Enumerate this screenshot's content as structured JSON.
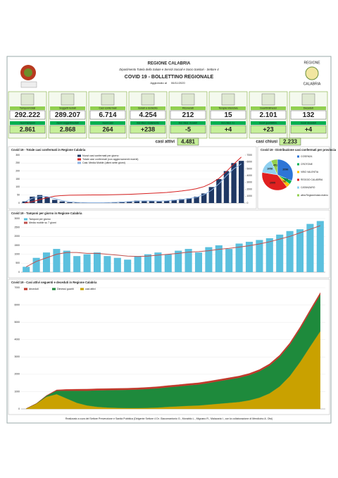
{
  "header": {
    "region": "REGIONE CALABRIA",
    "department": "Dipartimento Tutela della Salute e Servizi Sociali e Socio Sanitari - Settore 4",
    "title": "COVID 19 - BOLLETTINO REGIONALE",
    "updated_label": "Aggiornato al",
    "updated_date": "06/11/2020",
    "logo_top": "REGIONE",
    "logo_bottom": "CALABRIA"
  },
  "stats": [
    {
      "label": "Tamponi totali",
      "value": "292.222",
      "sub_label": "nuovi tamponi",
      "sub_value": "2.861"
    },
    {
      "label": "Soggetti testati",
      "value": "289.207",
      "sub_label": "nuovi soggetti testati",
      "sub_value": "2.868"
    },
    {
      "label": "Casi confermati",
      "value": "6.714",
      "sub_label": "nuovi casi",
      "sub_value": "264"
    },
    {
      "label": "Isolati a domicilio",
      "value": "4.254",
      "sub_label": "incr./decr. isolamento",
      "sub_value": "+238"
    },
    {
      "label": "Ricoverati",
      "value": "212",
      "sub_label": "incr./decr. ricoveri",
      "sub_value": "-5"
    },
    {
      "label": "Terapia intensiva",
      "value": "15",
      "sub_label": "incr./decr. t.i.",
      "sub_value": "+4"
    },
    {
      "label": "Guariti/dimessi",
      "value": "2.101",
      "sub_label": "nuovi guariti/dim.",
      "sub_value": "+23"
    },
    {
      "label": "Deceduti",
      "value": "132",
      "sub_label": "nuovi deceduti",
      "sub_value": "+4"
    }
  ],
  "active_label": "casi attivi",
  "active_value": "4.481",
  "closed_label": "casi chiusi",
  "closed_value": "2.233",
  "footer": "Realizzato a cura del Settore Prevenzione e Sanità Pubblica (Dirigente Settore 4 Dr. Giacomantonio G., Morabito L., Mignano R., Malacaria I., con la collaborazione di Mendicino A. Olsi)",
  "chart_data": [
    {
      "type": "bar",
      "title": "Covid 19 - Totale casi confermati in Regione Calabria",
      "grid": true,
      "ylim": [
        0,
        300
      ],
      "yticks": [
        0,
        50,
        100,
        150,
        200,
        250,
        300
      ],
      "y2lim": [
        0,
        7000
      ],
      "y2ticks": [
        0,
        1000,
        2000,
        3000,
        4000,
        5000,
        6000,
        7000
      ],
      "series": [
        {
          "name": "Nuovi casi confermati per giorno",
          "color": "#1f3864",
          "kind": "bar",
          "values": [
            10,
            40,
            50,
            40,
            20,
            10,
            5,
            3,
            2,
            2,
            2,
            3,
            5,
            8,
            10,
            15,
            15,
            12,
            10,
            15,
            20,
            25,
            30,
            40,
            60,
            100,
            150,
            200,
            250,
            264
          ]
        },
        {
          "name": "Totale casi confermati (con aggiornamenti recenti)",
          "color": "#d62020",
          "kind": "line",
          "axis": "y2",
          "values": [
            10,
            200,
            500,
            800,
            1000,
            1100,
            1150,
            1160,
            1170,
            1180,
            1190,
            1200,
            1220,
            1250,
            1280,
            1320,
            1380,
            1430,
            1480,
            1550,
            1650,
            1760,
            1900,
            2100,
            2400,
            2900,
            3600,
            4600,
            5700,
            6714
          ]
        },
        {
          "name": "Casi: Media Mobile (ultimi sette giorni)",
          "color": "#8db3e2",
          "kind": "line",
          "values": [
            8,
            30,
            42,
            40,
            28,
            15,
            8,
            4,
            3,
            2,
            2,
            3,
            4,
            6,
            9,
            12,
            14,
            13,
            12,
            14,
            18,
            22,
            28,
            36,
            52,
            80,
            120,
            170,
            215,
            245
          ]
        }
      ]
    },
    {
      "type": "pie",
      "title": "Covid 19 - Distribuzione casi confermati per provincia",
      "categories": [
        "COSENZA",
        "CROTONE",
        "VIBO VALENTIA",
        "REGGIO CALABRIA",
        "CATANZARO",
        "altra Regione/stato estero"
      ],
      "values": [
        2096,
        273,
        281,
        2555,
        1058,
        451
      ],
      "colors": [
        "#2e75d6",
        "#00b050",
        "#ffc000",
        "#e02020",
        "#8fd0f0",
        "#92d050"
      ]
    },
    {
      "type": "bar",
      "title": "Covid 19 - Tamponi per giorno in Regione Calabria",
      "grid": true,
      "ylim": [
        0,
        3000
      ],
      "yticks": [
        0,
        500,
        1000,
        1500,
        2000,
        2500,
        3000
      ],
      "series": [
        {
          "name": "Tamponi per giorno",
          "color": "#5bc0de",
          "kind": "bar",
          "values": [
            300,
            800,
            1100,
            1300,
            1200,
            900,
            1000,
            1100,
            900,
            800,
            700,
            900,
            1000,
            1100,
            1000,
            1200,
            1300,
            1100,
            1400,
            1500,
            1300,
            1600,
            1700,
            1800,
            1900,
            2100,
            2300,
            2400,
            2700,
            2861
          ]
        },
        {
          "name": "Media mobile su 7 giorni",
          "color": "#c0504d",
          "kind": "line",
          "values": [
            300,
            600,
            800,
            1000,
            1100,
            1100,
            1050,
            1050,
            1000,
            950,
            900,
            880,
            900,
            950,
            1000,
            1050,
            1120,
            1150,
            1200,
            1280,
            1330,
            1400,
            1480,
            1580,
            1700,
            1850,
            2000,
            2200,
            2400,
            2600
          ]
        }
      ]
    },
    {
      "type": "area",
      "title": "Covid 19 - Casi attivi seguenti e deceduti in Regione Calabria",
      "grid": true,
      "stacked": true,
      "ylim": [
        0,
        7000
      ],
      "yticks": [
        0,
        1000,
        2000,
        3000,
        4000,
        5000,
        6000,
        7000
      ],
      "series": [
        {
          "name": "deceduti",
          "color": "#c0392b",
          "values": [
            0,
            5,
            20,
            50,
            80,
            90,
            95,
            97,
            97,
            97,
            97,
            98,
            98,
            98,
            99,
            99,
            99,
            100,
            100,
            100,
            100,
            101,
            102,
            103,
            105,
            108,
            112,
            118,
            125,
            132
          ]
        },
        {
          "name": "Dimessi guariti",
          "color": "#1e8a3c",
          "values": [
            0,
            10,
            60,
            200,
            450,
            700,
            850,
            950,
            1000,
            1030,
            1050,
            1070,
            1090,
            1110,
            1130,
            1150,
            1180,
            1210,
            1250,
            1300,
            1350,
            1400,
            1450,
            1520,
            1600,
            1700,
            1800,
            1900,
            2000,
            2101
          ]
        },
        {
          "name": "casi attivi",
          "color": "#c9a100",
          "values": [
            20,
            300,
            700,
            850,
            600,
            350,
            200,
            120,
            80,
            60,
            50,
            50,
            60,
            80,
            120,
            150,
            180,
            200,
            250,
            300,
            350,
            400,
            500,
            650,
            900,
            1300,
            1900,
            2700,
            3600,
            4481
          ]
        }
      ]
    }
  ]
}
